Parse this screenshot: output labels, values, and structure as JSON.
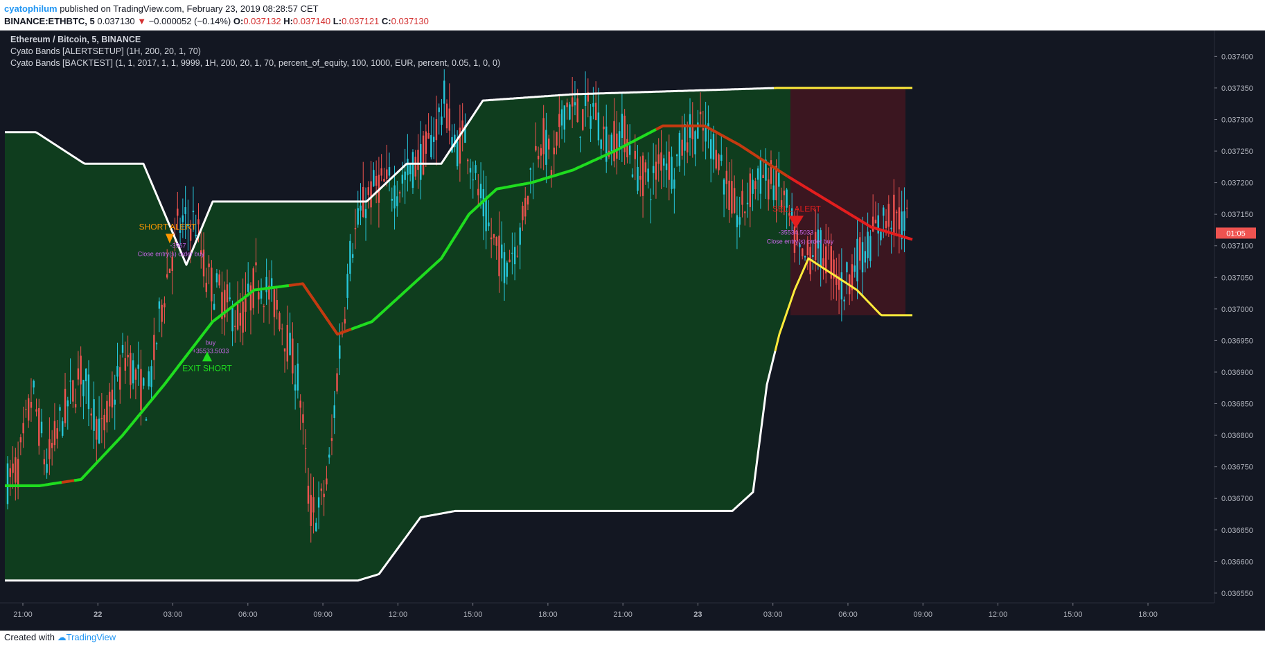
{
  "header": {
    "username": "cyatophilum",
    "published": "published on TradingView.com, February 23, 2019 08:28:57 CET",
    "symbol": "BINANCE:ETHBTC, 5",
    "last": "0.037130",
    "change": "−0.000052 (−0.14%)",
    "o_label": "O:",
    "o": "0.037132",
    "h_label": "H:",
    "h": "0.037140",
    "l_label": "L:",
    "l": "0.037121",
    "c_label": "C:",
    "c": "0.037130"
  },
  "legend": {
    "title": "Ethereum / Bitcoin, 5, BINANCE",
    "study1": "Cyato Bands [ALERTSETUP] (1H, 200, 20, 1, 70)",
    "study2": "Cyato Bands [BACKTEST] (1, 1, 2017, 1, 1, 9999, 1H, 200, 20, 1, 70, percent_of_equity, 100, 1000, EUR, percent, 0.05, 1, 0, 0)"
  },
  "footer": {
    "created": "Created with",
    "brand": "TradingView"
  },
  "colors": {
    "background": "#131722",
    "up": "#26c6da",
    "down": "#ef5350",
    "band_fill": "#0f3d1e",
    "sell_zone": "#3b1620",
    "band_line": "#ffffff",
    "yellow": "#ffeb3b",
    "green": "#1fdd1f",
    "red": "#e31e1e",
    "orange_red": "#c43a10",
    "alert_orange": "#ff9800",
    "trade_purple": "#c766e8",
    "price_badge": "#ef5350"
  },
  "chart_data": {
    "type": "candlestick",
    "xaxis_ticks": [
      "21:00",
      "22",
      "03:00",
      "06:00",
      "09:00",
      "12:00",
      "15:00",
      "18:00",
      "21:00",
      "23",
      "03:00",
      "06:00",
      "09:00",
      "12:00",
      "15:00",
      "18:00"
    ],
    "yaxis_ticks": [
      "0.037400",
      "0.037350",
      "0.037300",
      "0.037250",
      "0.037200",
      "0.037150",
      "0.037100",
      "0.037050",
      "0.037000",
      "0.036950",
      "0.036900",
      "0.036850",
      "0.036800",
      "0.036750",
      "0.036700",
      "0.036650",
      "0.036600",
      "0.036550"
    ],
    "ylim": [
      0.0365345,
      0.037441
    ],
    "last_price_label": "01:05",
    "last_price": 0.03713,
    "annotations": {
      "short_alert": "SHORT ALERT",
      "short_trade_id": "-3567",
      "short_entry": "Close entry(s) order buy",
      "exit_buy": "buy",
      "exit_profit": "+35533.5033",
      "exit_short": "EXIT SHORT",
      "sell_alert": "SELL ALERT",
      "sell_trade_id": "-35534.5033",
      "sell_entry": "Close entry(s) order buy"
    },
    "series": [
      {
        "name": "upper band",
        "points": [
          [
            0,
            0.03728
          ],
          [
            45,
            0.03728
          ],
          [
            115,
            0.03723
          ],
          [
            200,
            0.03723
          ],
          [
            262,
            0.03707
          ],
          [
            300,
            0.03717
          ],
          [
            522,
            0.03717
          ],
          [
            580,
            0.03723
          ],
          [
            630,
            0.03723
          ],
          [
            690,
            0.03733
          ],
          [
            820,
            0.03734
          ],
          [
            1115,
            0.03735
          ],
          [
            1310,
            0.03735
          ]
        ]
      },
      {
        "name": "lower band",
        "points": [
          [
            0,
            0.03657
          ],
          [
            510,
            0.03657
          ],
          [
            540,
            0.03658
          ],
          [
            600,
            0.03667
          ],
          [
            650,
            0.03668
          ],
          [
            1050,
            0.03668
          ],
          [
            1080,
            0.03671
          ],
          [
            1100,
            0.03688
          ],
          [
            1118,
            0.03696
          ],
          [
            1140,
            0.03703
          ],
          [
            1160,
            0.03708
          ],
          [
            1230,
            0.03703
          ],
          [
            1265,
            0.03699
          ],
          [
            1310,
            0.03699
          ]
        ]
      },
      {
        "name": "basis",
        "points": [
          [
            0,
            0.03672
          ],
          [
            50,
            0.03672
          ],
          [
            110,
            0.03673
          ],
          [
            170,
            0.0368
          ],
          [
            230,
            0.03688
          ],
          [
            300,
            0.03698
          ],
          [
            360,
            0.03703
          ],
          [
            430,
            0.03704
          ],
          [
            480,
            0.03696
          ],
          [
            530,
            0.03698
          ],
          [
            590,
            0.03704
          ],
          [
            630,
            0.03708
          ],
          [
            670,
            0.03715
          ],
          [
            710,
            0.03719
          ],
          [
            760,
            0.0372
          ],
          [
            820,
            0.03722
          ],
          [
            880,
            0.03725
          ],
          [
            950,
            0.03729
          ],
          [
            1010,
            0.03729
          ],
          [
            1060,
            0.03726
          ],
          [
            1130,
            0.03721
          ],
          [
            1190,
            0.03717
          ],
          [
            1250,
            0.03713
          ],
          [
            1310,
            0.03711
          ]
        ]
      }
    ],
    "candles": {
      "count": 345,
      "x_start": 4,
      "x_end": 1306,
      "path": [
        [
          0,
          0.03672
        ],
        [
          20,
          0.03675
        ],
        [
          40,
          0.03687
        ],
        [
          60,
          0.03675
        ],
        [
          80,
          0.03682
        ],
        [
          110,
          0.0369
        ],
        [
          140,
          0.0368
        ],
        [
          175,
          0.03693
        ],
        [
          205,
          0.03685
        ],
        [
          230,
          0.03703
        ],
        [
          250,
          0.03713
        ],
        [
          275,
          0.03714
        ],
        [
          290,
          0.03705
        ],
        [
          305,
          0.03703
        ],
        [
          340,
          0.03698
        ],
        [
          365,
          0.03705
        ],
        [
          395,
          0.037
        ],
        [
          425,
          0.03688
        ],
        [
          440,
          0.03668
        ],
        [
          455,
          0.03668
        ],
        [
          470,
          0.03676
        ],
        [
          480,
          0.0369
        ],
        [
          500,
          0.0371
        ],
        [
          520,
          0.03717
        ],
        [
          540,
          0.0372
        ],
        [
          565,
          0.03719
        ],
        [
          585,
          0.03722
        ],
        [
          610,
          0.03725
        ],
        [
          635,
          0.03733
        ],
        [
          650,
          0.03725
        ],
        [
          665,
          0.03728
        ],
        [
          680,
          0.0372
        ],
        [
          700,
          0.03712
        ],
        [
          720,
          0.03707
        ],
        [
          745,
          0.03712
        ],
        [
          760,
          0.03722
        ],
        [
          775,
          0.03728
        ],
        [
          790,
          0.03722
        ],
        [
          810,
          0.03733
        ],
        [
          830,
          0.0373
        ],
        [
          850,
          0.03732
        ],
        [
          870,
          0.03726
        ],
        [
          895,
          0.03728
        ],
        [
          910,
          0.03722
        ],
        [
          935,
          0.0372
        ],
        [
          950,
          0.03725
        ],
        [
          965,
          0.03722
        ],
        [
          985,
          0.03728
        ],
        [
          1010,
          0.03728
        ],
        [
          1030,
          0.03725
        ],
        [
          1045,
          0.03718
        ],
        [
          1060,
          0.03714
        ],
        [
          1080,
          0.0372
        ],
        [
          1095,
          0.03721
        ],
        [
          1110,
          0.0372
        ],
        [
          1125,
          0.03717
        ],
        [
          1140,
          0.03711
        ],
        [
          1150,
          0.03707
        ],
        [
          1170,
          0.0371
        ],
        [
          1190,
          0.03708
        ],
        [
          1210,
          0.03703
        ],
        [
          1225,
          0.03707
        ],
        [
          1245,
          0.0371
        ],
        [
          1260,
          0.03713
        ],
        [
          1280,
          0.03715
        ],
        [
          1306,
          0.03713
        ]
      ]
    }
  }
}
